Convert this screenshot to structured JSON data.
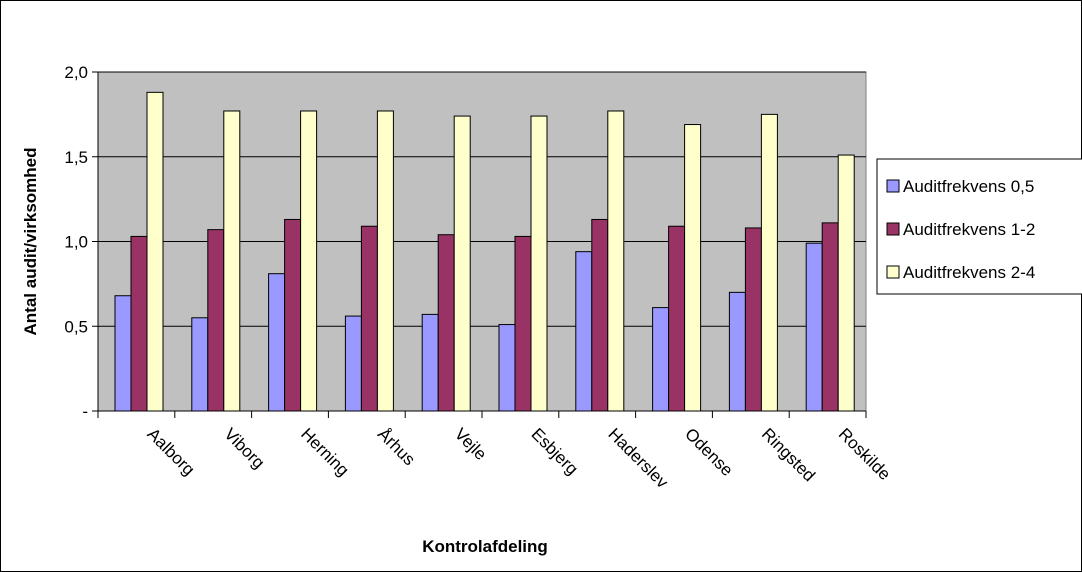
{
  "chart_data": {
    "type": "bar",
    "title": "",
    "xlabel": "Kontrolafdeling",
    "ylabel": "Antal audit/virksomhed",
    "categories": [
      "Aalborg",
      "Viborg",
      "Herning",
      "Århus",
      "Vejle",
      "Esbjerg",
      "Haderslev",
      "Odense",
      "Ringsted",
      "Roskilde"
    ],
    "series": [
      {
        "name": "Auditfrekvens 0,5",
        "color": "#9999ff",
        "values": [
          0.68,
          0.55,
          0.81,
          0.56,
          0.57,
          0.51,
          0.94,
          0.61,
          0.7,
          0.99
        ]
      },
      {
        "name": "Auditfrekvens 1-2",
        "color": "#993366",
        "values": [
          1.03,
          1.07,
          1.13,
          1.09,
          1.04,
          1.03,
          1.13,
          1.09,
          1.08,
          1.11
        ]
      },
      {
        "name": "Auditfrekvens 2-4",
        "color": "#ffffcc",
        "values": [
          1.88,
          1.77,
          1.77,
          1.77,
          1.74,
          1.74,
          1.77,
          1.69,
          1.75,
          1.51
        ]
      }
    ],
    "ylim": [
      0,
      2.0
    ],
    "yticks": [
      "-",
      "0,5",
      "1,0",
      "1,5",
      "2,0"
    ],
    "yticks_values": [
      0,
      0.5,
      1.0,
      1.5,
      2.0
    ],
    "grid": true,
    "plot_background": "#c0c0c0",
    "legend_position": "right"
  }
}
